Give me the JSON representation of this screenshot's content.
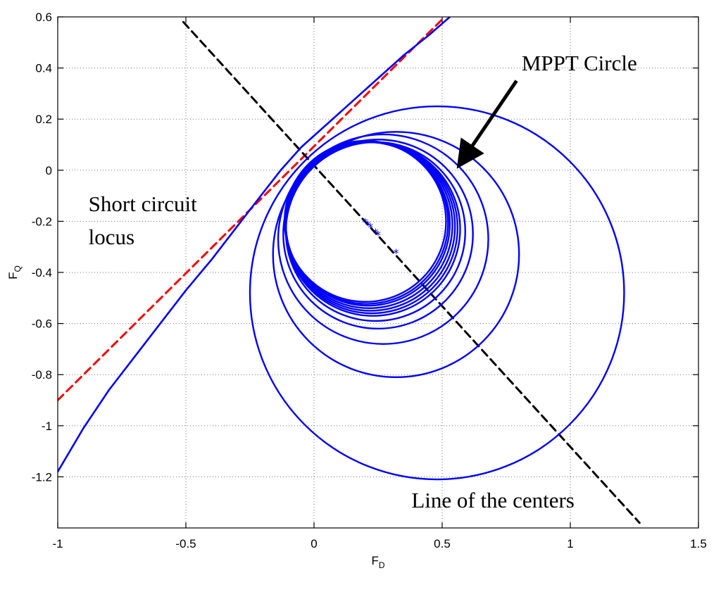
{
  "chart_data": {
    "type": "line",
    "title": "",
    "xlabel": "F",
    "xlabel_sub": "D",
    "ylabel": "F",
    "ylabel_sub": "Q",
    "xlim": [
      -1,
      1.5
    ],
    "ylim": [
      -1.4,
      0.6
    ],
    "grid": true,
    "xticks": [
      -1,
      -0.5,
      0,
      0.5,
      1,
      1.5
    ],
    "xtick_labels": [
      "-1",
      "-0.5",
      "0",
      "0.5",
      "1",
      "1.5"
    ],
    "yticks": [
      0.6,
      0.4,
      0.2,
      0,
      -0.2,
      -0.4,
      -0.6,
      -0.8,
      -1,
      -1.2
    ],
    "ytick_labels": [
      "0.6",
      "0.4",
      "0.2",
      "0",
      "-0.2",
      "-0.4",
      "-0.6",
      "-0.8",
      "-1",
      "-1.2"
    ],
    "colors": {
      "trajectory": "#0000ff",
      "short_circuit": "#ff0000",
      "centers": "#000000"
    },
    "series": [
      {
        "kind": "dashed-line",
        "color": "#ff0000",
        "x": [
          -1.0,
          0.51
        ],
        "y": [
          -0.9,
          0.6
        ]
      },
      {
        "kind": "dashed-line",
        "color": "#000000",
        "x": [
          -0.51,
          1.27
        ],
        "y": [
          0.58,
          -1.38
        ]
      },
      {
        "kind": "solid-curve",
        "color": "#0000ff",
        "x": [
          -1.0,
          -0.9,
          -0.8,
          -0.7,
          -0.6,
          -0.5,
          -0.4,
          -0.3,
          -0.2,
          -0.13
        ],
        "y": [
          -1.18,
          -1.01,
          -0.86,
          -0.73,
          -0.6,
          -0.47,
          -0.35,
          -0.22,
          -0.09,
          0.0
        ]
      },
      {
        "kind": "solid-curve",
        "color": "#0000ff",
        "x": [
          -0.13,
          -0.05,
          0.05,
          0.15,
          0.25,
          0.35,
          0.45,
          0.53
        ],
        "y": [
          0.0,
          0.09,
          0.18,
          0.27,
          0.36,
          0.45,
          0.53,
          0.6
        ]
      },
      {
        "kind": "circles",
        "color": "#0000ff",
        "circles": [
          {
            "cx": 0.48,
            "cy": -0.48,
            "r": 0.73
          },
          {
            "cx": 0.32,
            "cy": -0.33,
            "r": 0.48
          },
          {
            "cx": 0.27,
            "cy": -0.27,
            "r": 0.41
          },
          {
            "cx": 0.25,
            "cy": -0.25,
            "r": 0.37
          },
          {
            "cx": 0.24,
            "cy": -0.24,
            "r": 0.35
          },
          {
            "cx": 0.23,
            "cy": -0.23,
            "r": 0.34
          },
          {
            "cx": 0.225,
            "cy": -0.225,
            "r": 0.335
          },
          {
            "cx": 0.22,
            "cy": -0.22,
            "r": 0.33
          },
          {
            "cx": 0.215,
            "cy": -0.215,
            "r": 0.325
          },
          {
            "cx": 0.21,
            "cy": -0.21,
            "r": 0.32
          },
          {
            "cx": 0.205,
            "cy": -0.205,
            "r": 0.318
          },
          {
            "cx": 0.2,
            "cy": -0.2,
            "r": 0.315
          }
        ]
      },
      {
        "kind": "center-markers",
        "color": "#0000ff",
        "x": [
          0.2,
          0.21,
          0.22,
          0.24,
          0.25,
          0.32
        ],
        "y": [
          -0.2,
          -0.21,
          -0.22,
          -0.24,
          -0.25,
          -0.32
        ]
      }
    ],
    "annotations": [
      {
        "text": "MPPT Circle",
        "x": 0.81,
        "y": 0.39
      },
      {
        "text": "Short circuit",
        "x": -0.88,
        "y": -0.16
      },
      {
        "text": "locus",
        "x": -0.88,
        "y": -0.29
      },
      {
        "text": "Line of the centers",
        "x": 0.38,
        "y": -1.32
      }
    ],
    "arrow": {
      "from": [
        0.79,
        0.35
      ],
      "to": [
        0.58,
        0.04
      ]
    }
  }
}
